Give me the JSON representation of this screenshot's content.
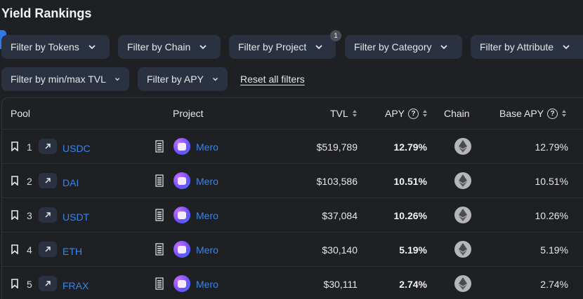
{
  "page_title": "Yield Rankings",
  "filters_row1": [
    {
      "label": "Filter by Tokens"
    },
    {
      "label": "Filter by Chain"
    },
    {
      "label": "Filter by Project",
      "badge": "1"
    },
    {
      "label": "Filter by Category"
    },
    {
      "label": "Filter by Attribute"
    }
  ],
  "filters_row2": [
    {
      "label": "Filter by min/max TVL"
    },
    {
      "label": "Filter by APY"
    }
  ],
  "reset_label": "Reset all filters",
  "table": {
    "headers": {
      "pool": "Pool",
      "project": "Project",
      "tvl": "TVL",
      "apy": "APY",
      "chain": "Chain",
      "base_apy": "Base APY"
    },
    "help_glyph": "?",
    "rows": [
      {
        "rank": "1",
        "symbol": "USDC",
        "project": "Mero",
        "tvl": "$519,789",
        "apy": "12.79%",
        "chain_icon": "ethereum-icon",
        "base_apy": "12.79%"
      },
      {
        "rank": "2",
        "symbol": "DAI",
        "project": "Mero",
        "tvl": "$103,586",
        "apy": "10.51%",
        "chain_icon": "ethereum-icon",
        "base_apy": "10.51%"
      },
      {
        "rank": "3",
        "symbol": "USDT",
        "project": "Mero",
        "tvl": "$37,084",
        "apy": "10.26%",
        "chain_icon": "ethereum-icon",
        "base_apy": "10.26%"
      },
      {
        "rank": "4",
        "symbol": "ETH",
        "project": "Mero",
        "tvl": "$30,140",
        "apy": "5.19%",
        "chain_icon": "ethereum-icon",
        "base_apy": "5.19%"
      },
      {
        "rank": "5",
        "symbol": "FRAX",
        "project": "Mero",
        "tvl": "$30,111",
        "apy": "2.74%",
        "chain_icon": "ethereum-icon",
        "base_apy": "2.74%"
      }
    ]
  },
  "colors": {
    "background": "#1f2024",
    "chip": "#2a3140",
    "link": "#3b84e8",
    "accent": "#2f7ae5"
  }
}
